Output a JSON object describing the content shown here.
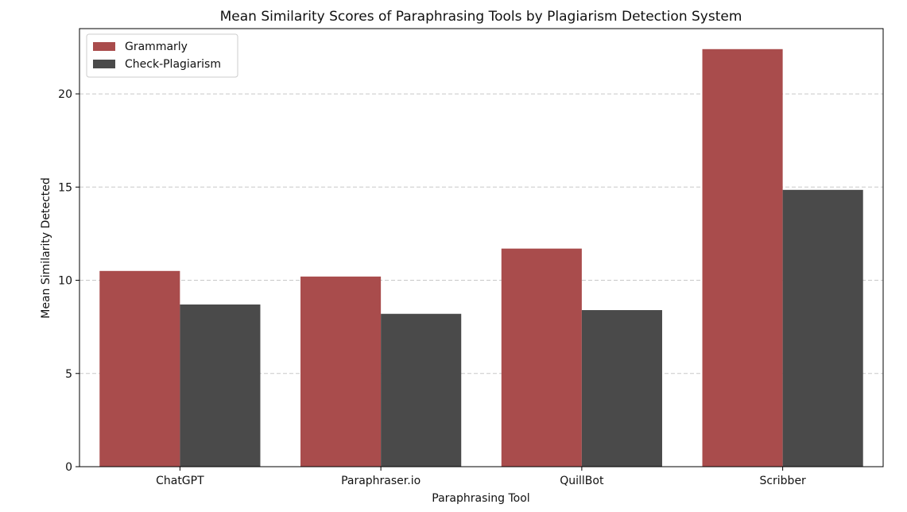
{
  "chart_data": {
    "type": "bar",
    "title": "Mean Similarity Scores of Paraphrasing Tools by Plagiarism Detection System",
    "xlabel": "Paraphrasing Tool",
    "ylabel": "Mean Similarity Detected",
    "categories": [
      "ChatGPT",
      "Paraphraser.io",
      "QuillBot",
      "Scribber"
    ],
    "series": [
      {
        "name": "Grammarly",
        "color": "#a94c4c",
        "values": [
          10.5,
          10.2,
          11.7,
          22.4
        ]
      },
      {
        "name": "Check-Plagiarism",
        "color": "#4a4a4a",
        "values": [
          8.7,
          8.2,
          8.4,
          14.85
        ]
      }
    ],
    "ylim": [
      0,
      23.5
    ],
    "yticks": [
      0,
      5,
      10,
      15,
      20
    ],
    "grid": "y-dashed",
    "legend_position": "top-left"
  }
}
